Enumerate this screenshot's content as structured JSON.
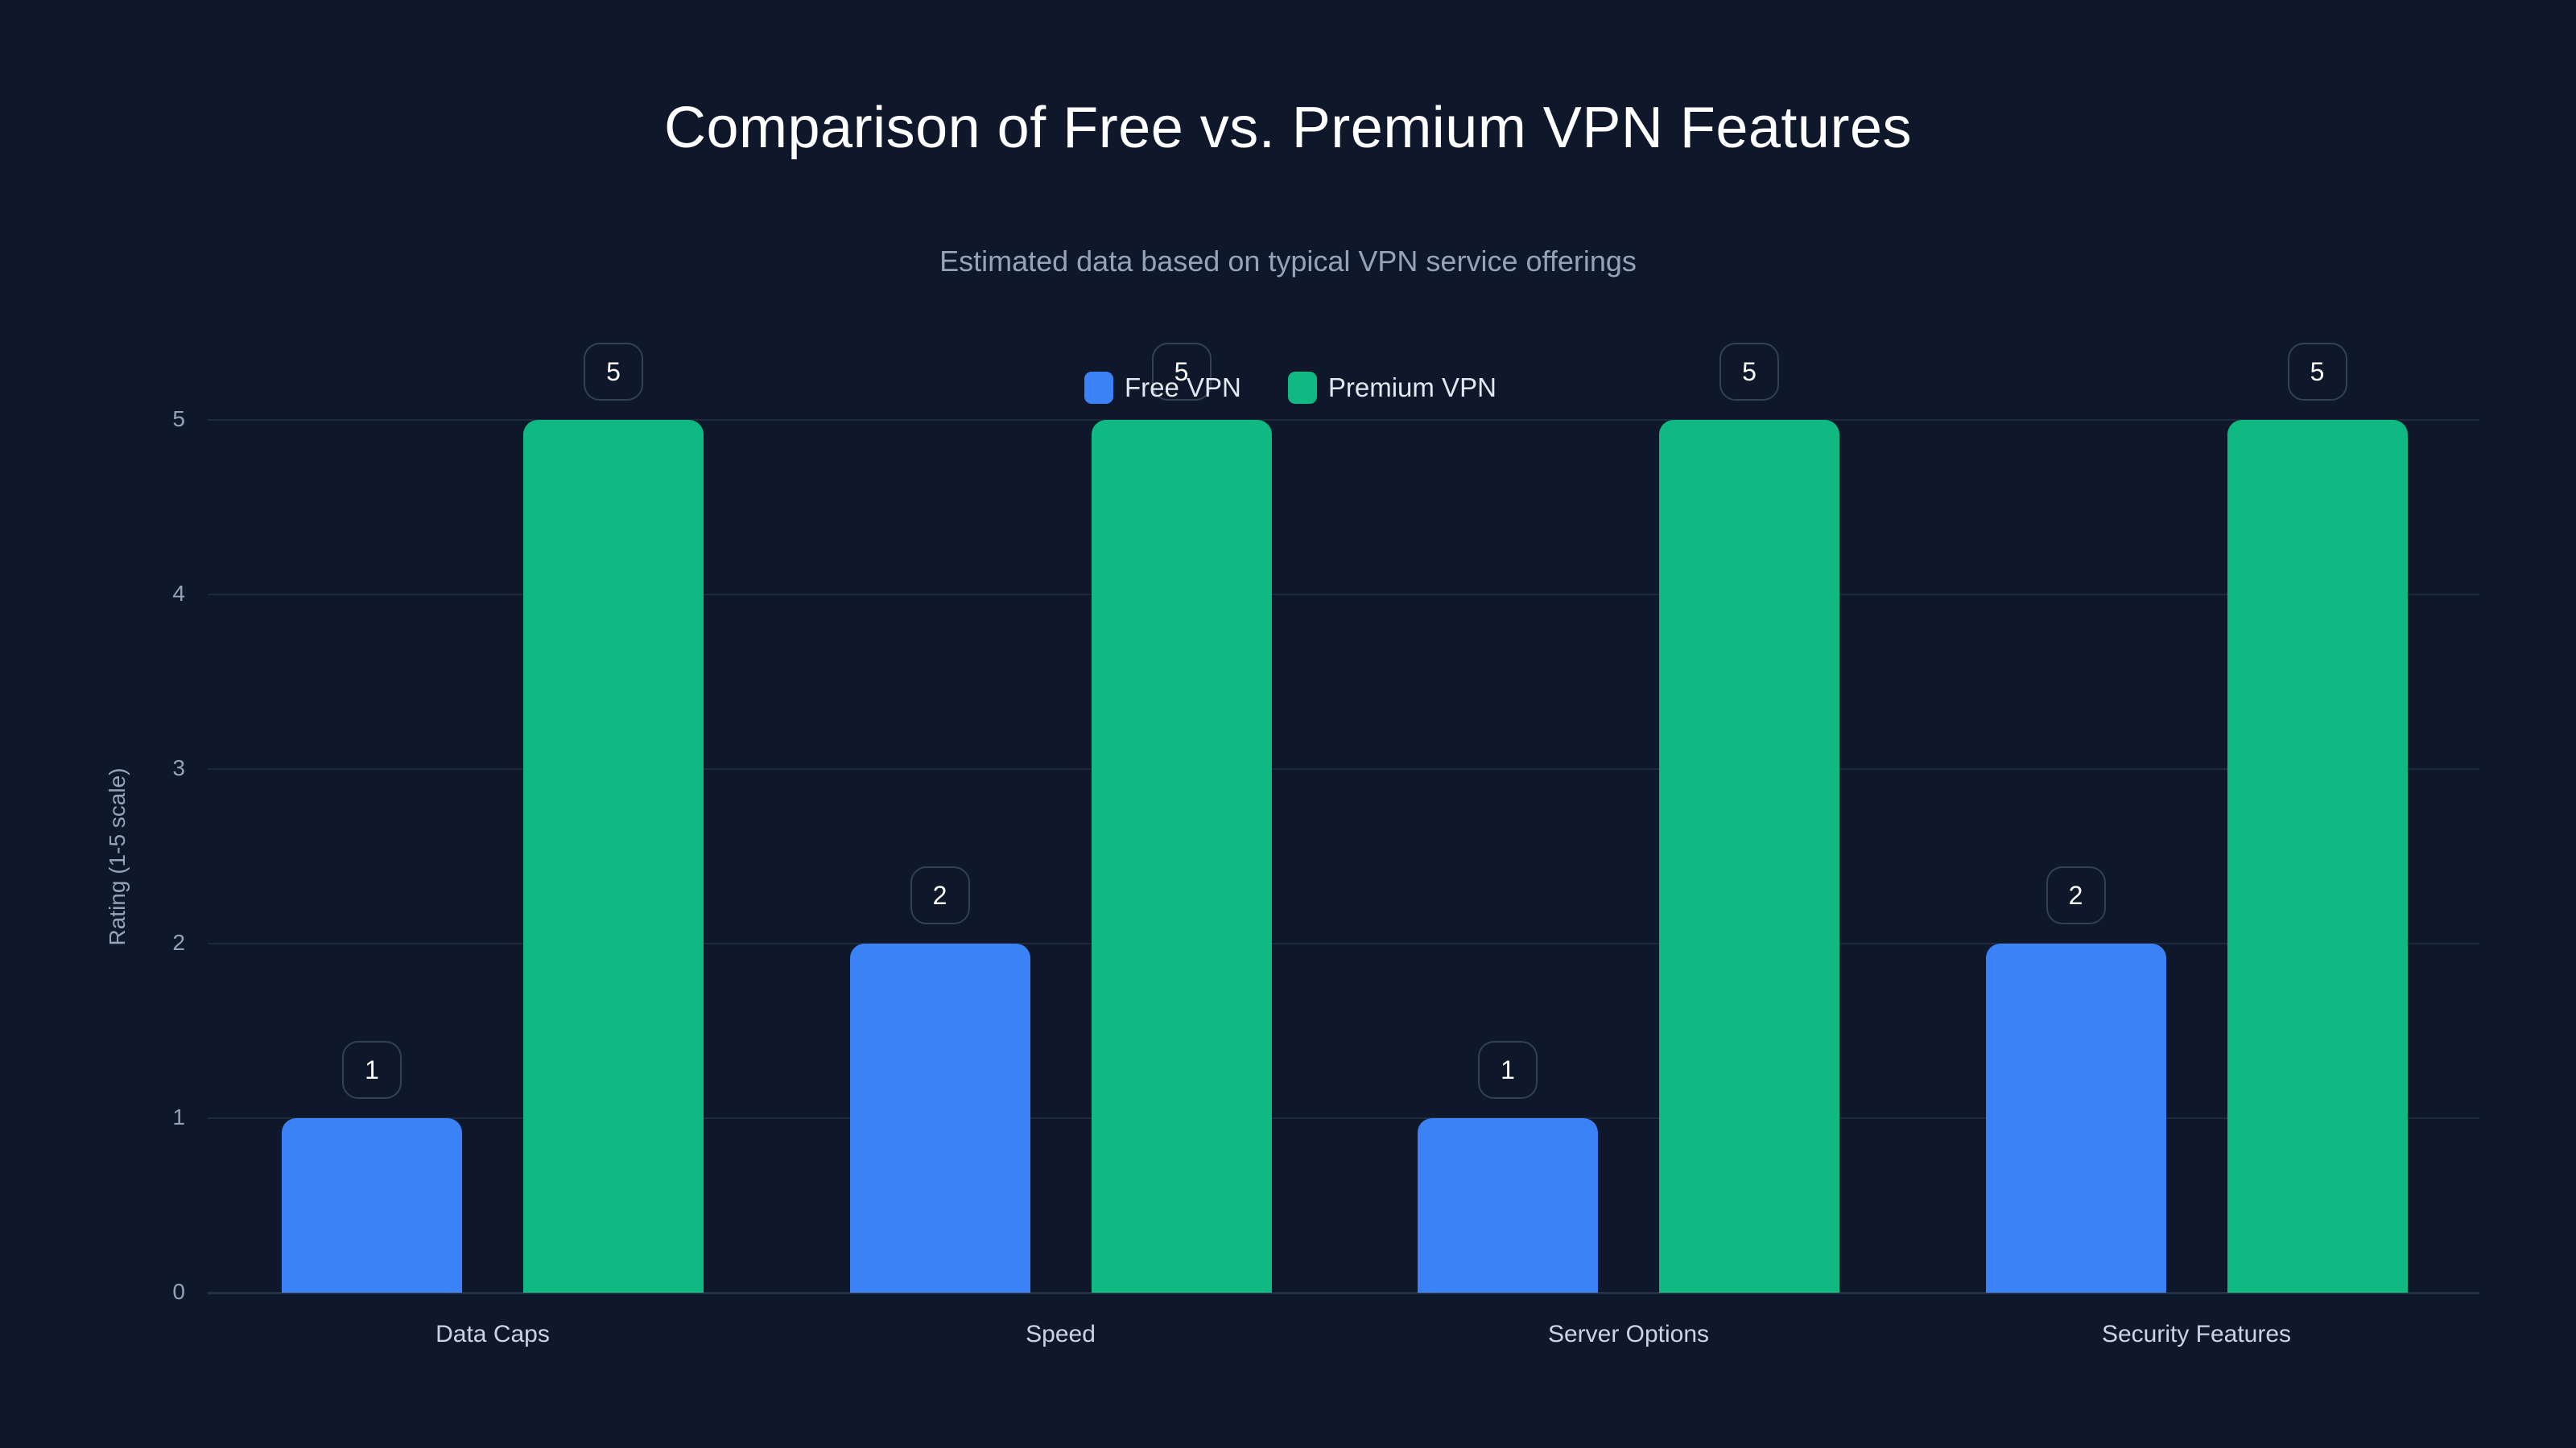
{
  "chart_data": {
    "type": "bar",
    "title": "Comparison of Free vs. Premium VPN Features",
    "subtitle": "Estimated data based on typical VPN service offerings",
    "xlabel": "",
    "ylabel": "Rating (1-5 scale)",
    "categories": [
      "Data Caps",
      "Speed",
      "Server Options",
      "Security Features"
    ],
    "series": [
      {
        "name": "Free VPN",
        "color": "#3b82f6",
        "values": [
          1,
          2,
          1,
          2
        ]
      },
      {
        "name": "Premium VPN",
        "color": "#10b981",
        "values": [
          5,
          5,
          5,
          5
        ]
      }
    ],
    "ylim": [
      0,
      5
    ],
    "yticks": [
      "0",
      "1",
      "2",
      "3",
      "4",
      "5"
    ],
    "grid": true,
    "legend_position": "top-center",
    "data_labels": true
  },
  "colors": {
    "background": "#0f172a",
    "free": "#3b82f6",
    "premium": "#10b981",
    "grid": "#1e293b",
    "muted_text": "#94a3b8"
  }
}
